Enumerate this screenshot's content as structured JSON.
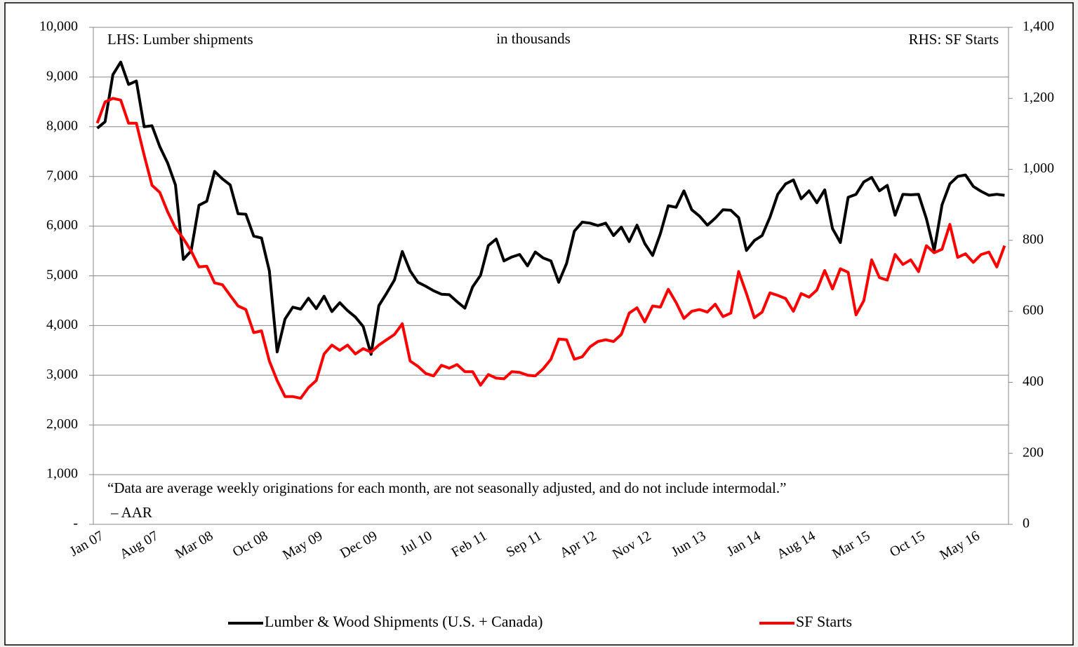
{
  "chart_data": {
    "type": "line",
    "annotations": [
      "LHS: Lumber shipments",
      "in thousands",
      "RHS: SF Starts",
      "“Data are average weekly originations for each month, are not seasonally adjusted, and do not include intermodal.”",
      "– AAR"
    ],
    "categories": [
      "Jan 07",
      null,
      null,
      null,
      null,
      null,
      null,
      "Aug 07",
      null,
      null,
      null,
      null,
      null,
      null,
      "Mar 08",
      null,
      null,
      null,
      null,
      null,
      null,
      "Oct 08",
      null,
      null,
      null,
      null,
      null,
      null,
      "May 09",
      null,
      null,
      null,
      null,
      null,
      null,
      "Dec 09",
      null,
      null,
      null,
      null,
      null,
      null,
      "Jul 10",
      null,
      null,
      null,
      null,
      null,
      null,
      "Feb 11",
      null,
      null,
      null,
      null,
      null,
      null,
      "Sep 11",
      null,
      null,
      null,
      null,
      null,
      null,
      "Apr 12",
      null,
      null,
      null,
      null,
      null,
      null,
      "Nov 12",
      null,
      null,
      null,
      null,
      null,
      null,
      "Jun 13",
      null,
      null,
      null,
      null,
      null,
      null,
      "Jan 14",
      null,
      null,
      null,
      null,
      null,
      null,
      "Aug 14",
      null,
      null,
      null,
      null,
      null,
      null,
      "Mar 15",
      null,
      null,
      null,
      null,
      null,
      null,
      "Oct 15",
      null,
      null,
      null,
      null,
      null,
      null,
      "May 16",
      null,
      null,
      null,
      null
    ],
    "series": [
      {
        "name": "Lumber & Wood Shipments (U.S. + Canada)",
        "color": "#000000",
        "axis": "y",
        "values": [
          7970,
          8100,
          9050,
          9300,
          8850,
          8920,
          8000,
          8020,
          7600,
          7270,
          6830,
          5330,
          5500,
          6420,
          6500,
          7100,
          6950,
          6830,
          6250,
          6240,
          5800,
          5760,
          5100,
          3470,
          4130,
          4370,
          4330,
          4550,
          4340,
          4590,
          4280,
          4460,
          4300,
          4170,
          3980,
          3420,
          4400,
          4650,
          4920,
          5490,
          5100,
          4870,
          4790,
          4700,
          4630,
          4620,
          4480,
          4350,
          4780,
          5010,
          5610,
          5740,
          5300,
          5380,
          5430,
          5200,
          5480,
          5360,
          5300,
          4870,
          5250,
          5900,
          6080,
          6060,
          6010,
          6060,
          5810,
          5980,
          5690,
          6020,
          5650,
          5410,
          5850,
          6410,
          6380,
          6710,
          6330,
          6200,
          6020,
          6160,
          6330,
          6320,
          6170,
          5510,
          5710,
          5810,
          6180,
          6640,
          6850,
          6930,
          6550,
          6710,
          6470,
          6730,
          5950,
          5670,
          6580,
          6640,
          6890,
          6980,
          6710,
          6820,
          6220,
          6640,
          6630,
          6640,
          6150,
          5510,
          6430,
          6850,
          7000,
          7030,
          6800,
          6700,
          6620,
          6640,
          6620
        ]
      },
      {
        "name": "SF Starts",
        "color": "#ff0000",
        "axis": "y2",
        "values": [
          1130,
          1190,
          1200,
          1195,
          1130,
          1130,
          1040,
          955,
          935,
          880,
          835,
          805,
          770,
          725,
          727,
          680,
          675,
          645,
          615,
          605,
          540,
          545,
          460,
          405,
          360,
          360,
          355,
          385,
          405,
          480,
          505,
          490,
          505,
          480,
          495,
          485,
          505,
          520,
          535,
          565,
          460,
          445,
          425,
          418,
          448,
          440,
          450,
          430,
          430,
          392,
          422,
          412,
          410,
          430,
          428,
          420,
          418,
          438,
          465,
          522,
          520,
          465,
          472,
          500,
          515,
          520,
          515,
          535,
          595,
          610,
          570,
          615,
          612,
          662,
          625,
          580,
          600,
          605,
          598,
          620,
          585,
          595,
          712,
          650,
          582,
          598,
          652,
          645,
          636,
          600,
          650,
          640,
          660,
          715,
          663,
          720,
          710,
          590,
          630,
          745,
          695,
          688,
          760,
          732,
          745,
          712,
          785,
          765,
          775,
          845,
          752,
          762,
          738,
          760,
          767,
          725,
          785
        ]
      }
    ],
    "ylim": [
      0,
      10000
    ],
    "yticks": [
      {
        "value": 0,
        "label": "-"
      },
      {
        "value": 1000,
        "label": "1,000"
      },
      {
        "value": 2000,
        "label": "2,000"
      },
      {
        "value": 3000,
        "label": "3,000"
      },
      {
        "value": 4000,
        "label": "4,000"
      },
      {
        "value": 5000,
        "label": "5,000"
      },
      {
        "value": 6000,
        "label": "6,000"
      },
      {
        "value": 7000,
        "label": "7,000"
      },
      {
        "value": 8000,
        "label": "8,000"
      },
      {
        "value": 9000,
        "label": "9,000"
      },
      {
        "value": 10000,
        "label": "10,000"
      }
    ],
    "y2lim": [
      0,
      1400
    ],
    "y2ticks": [
      0,
      200,
      400,
      600,
      800,
      {
        "value": 1000,
        "label": "1,000"
      },
      {
        "value": 1200,
        "label": "1,200"
      },
      {
        "value": 1400,
        "label": "1,400"
      }
    ],
    "grid": true,
    "legend": "bottom"
  }
}
